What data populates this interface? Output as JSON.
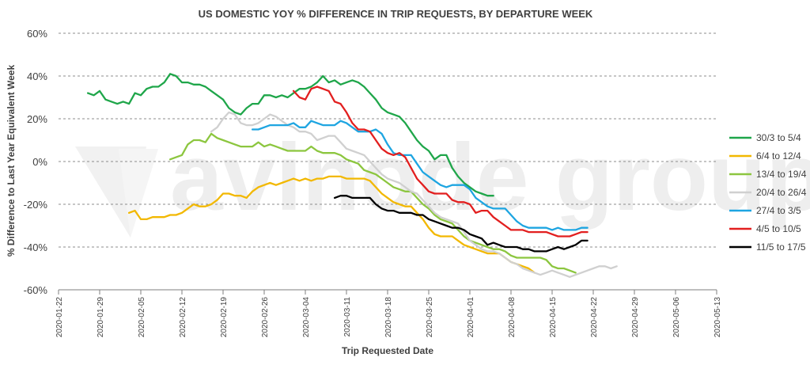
{
  "chart_data": {
    "type": "line",
    "title": "US DOMESTIC YOY % DIFFERENCE IN TRIP REQUESTS, BY DEPARTURE WEEK",
    "xlabel": "Trip Requested Date",
    "ylabel": "% Difference to Last Year Equivalent Week",
    "watermark": "avinode group",
    "ylim": [
      -60,
      60
    ],
    "yticks": [
      60,
      40,
      20,
      0,
      -20,
      -40,
      -60
    ],
    "ytick_labels": [
      "60%",
      "40%",
      "20%",
      "0%",
      "-20%",
      "-40%",
      "-60%"
    ],
    "xlim": [
      "2020-01-22",
      "2020-05-13"
    ],
    "xticks": [
      "2020-01-22",
      "2020-01-29",
      "2020-02-05",
      "2020-02-12",
      "2020-02-19",
      "2020-02-26",
      "2020-03-04",
      "2020-03-11",
      "2020-03-18",
      "2020-03-25",
      "2020-04-01",
      "2020-04-08",
      "2020-04-15",
      "2020-04-22",
      "2020-04-29",
      "2020-05-06",
      "2020-05-13"
    ],
    "grid": "horizontal-dashed",
    "legend_position": "right",
    "series": [
      {
        "name": "30/3 to 5/4",
        "color": "#1fa64a",
        "x": [
          "2020-01-27",
          "2020-01-28",
          "2020-01-29",
          "2020-01-30",
          "2020-01-31",
          "2020-02-01",
          "2020-02-02",
          "2020-02-03",
          "2020-02-04",
          "2020-02-05",
          "2020-02-06",
          "2020-02-07",
          "2020-02-08",
          "2020-02-09",
          "2020-02-10",
          "2020-02-11",
          "2020-02-12",
          "2020-02-13",
          "2020-02-14",
          "2020-02-15",
          "2020-02-16",
          "2020-02-17",
          "2020-02-18",
          "2020-02-19",
          "2020-02-20",
          "2020-02-21",
          "2020-02-22",
          "2020-02-23",
          "2020-02-24",
          "2020-02-25",
          "2020-02-26",
          "2020-02-27",
          "2020-02-28",
          "2020-02-29",
          "2020-03-01",
          "2020-03-02",
          "2020-03-03",
          "2020-03-04",
          "2020-03-05",
          "2020-03-06",
          "2020-03-07",
          "2020-03-08",
          "2020-03-09",
          "2020-03-10",
          "2020-03-11",
          "2020-03-12",
          "2020-03-13",
          "2020-03-14",
          "2020-03-15",
          "2020-03-16",
          "2020-03-17",
          "2020-03-18",
          "2020-03-19",
          "2020-03-20",
          "2020-03-21",
          "2020-03-22",
          "2020-03-23",
          "2020-03-24",
          "2020-03-25",
          "2020-03-26",
          "2020-03-27",
          "2020-03-28",
          "2020-03-29",
          "2020-03-30",
          "2020-03-31",
          "2020-04-01",
          "2020-04-02",
          "2020-04-03",
          "2020-04-04",
          "2020-04-05"
        ],
        "y": [
          32,
          31,
          33,
          29,
          28,
          27,
          28,
          27,
          32,
          31,
          34,
          35,
          35,
          37,
          41,
          40,
          37,
          37,
          36,
          36,
          35,
          33,
          31,
          29,
          25,
          23,
          22,
          25,
          27,
          27,
          31,
          31,
          30,
          31,
          30,
          32,
          34,
          34,
          35,
          37,
          40,
          37,
          38,
          36,
          37,
          38,
          37,
          35,
          32,
          29,
          25,
          23,
          22,
          21,
          18,
          14,
          10,
          7,
          5,
          1,
          3,
          3,
          -3,
          -7,
          -10,
          -12,
          -14,
          -15,
          -16,
          -16
        ]
      },
      {
        "name": "6/4 to 12/4",
        "color": "#f2b800",
        "x": [
          "2020-02-03",
          "2020-02-04",
          "2020-02-05",
          "2020-02-06",
          "2020-02-07",
          "2020-02-08",
          "2020-02-09",
          "2020-02-10",
          "2020-02-11",
          "2020-02-12",
          "2020-02-13",
          "2020-02-14",
          "2020-02-15",
          "2020-02-16",
          "2020-02-17",
          "2020-02-18",
          "2020-02-19",
          "2020-02-20",
          "2020-02-21",
          "2020-02-22",
          "2020-02-23",
          "2020-02-24",
          "2020-02-25",
          "2020-02-26",
          "2020-02-27",
          "2020-02-28",
          "2020-02-29",
          "2020-03-01",
          "2020-03-02",
          "2020-03-03",
          "2020-03-04",
          "2020-03-05",
          "2020-03-06",
          "2020-03-07",
          "2020-03-08",
          "2020-03-09",
          "2020-03-10",
          "2020-03-11",
          "2020-03-12",
          "2020-03-13",
          "2020-03-14",
          "2020-03-15",
          "2020-03-16",
          "2020-03-17",
          "2020-03-18",
          "2020-03-19",
          "2020-03-20",
          "2020-03-21",
          "2020-03-22",
          "2020-03-23",
          "2020-03-24",
          "2020-03-25",
          "2020-03-26",
          "2020-03-27",
          "2020-03-28",
          "2020-03-29",
          "2020-03-30",
          "2020-03-31",
          "2020-04-01",
          "2020-04-02",
          "2020-04-03",
          "2020-04-04",
          "2020-04-05",
          "2020-04-06",
          "2020-04-07",
          "2020-04-08",
          "2020-04-09",
          "2020-04-10",
          "2020-04-11",
          "2020-04-12"
        ],
        "y": [
          -24,
          -23,
          -27,
          -27,
          -26,
          -26,
          -26,
          -25,
          -25,
          -24,
          -22,
          -20,
          -21,
          -21,
          -20,
          -18,
          -15,
          -15,
          -16,
          -16,
          -17,
          -14,
          -12,
          -11,
          -10,
          -11,
          -10,
          -9,
          -8,
          -9,
          -8,
          -9,
          -8,
          -8,
          -7,
          -7,
          -7,
          -8,
          -8,
          -8,
          -8,
          -9,
          -12,
          -15,
          -17,
          -19,
          -20,
          -21,
          -21,
          -24,
          -27,
          -31,
          -34,
          -35,
          -35,
          -35,
          -37,
          -39,
          -40,
          -41,
          -42,
          -43,
          -43,
          -43,
          -45,
          -47,
          -48,
          -49,
          -50,
          -52
        ]
      },
      {
        "name": "13/4 to 19/4",
        "color": "#8cc63f",
        "x": [
          "2020-02-10",
          "2020-02-11",
          "2020-02-12",
          "2020-02-13",
          "2020-02-14",
          "2020-02-15",
          "2020-02-16",
          "2020-02-17",
          "2020-02-18",
          "2020-02-19",
          "2020-02-20",
          "2020-02-21",
          "2020-02-22",
          "2020-02-23",
          "2020-02-24",
          "2020-02-25",
          "2020-02-26",
          "2020-02-27",
          "2020-02-28",
          "2020-02-29",
          "2020-03-01",
          "2020-03-02",
          "2020-03-03",
          "2020-03-04",
          "2020-03-05",
          "2020-03-06",
          "2020-03-07",
          "2020-03-08",
          "2020-03-09",
          "2020-03-10",
          "2020-03-11",
          "2020-03-12",
          "2020-03-13",
          "2020-03-14",
          "2020-03-15",
          "2020-03-16",
          "2020-03-17",
          "2020-03-18",
          "2020-03-19",
          "2020-03-20",
          "2020-03-21",
          "2020-03-22",
          "2020-03-23",
          "2020-03-24",
          "2020-03-25",
          "2020-03-26",
          "2020-03-27",
          "2020-03-28",
          "2020-03-29",
          "2020-03-30",
          "2020-03-31",
          "2020-04-01",
          "2020-04-02",
          "2020-04-03",
          "2020-04-04",
          "2020-04-05",
          "2020-04-06",
          "2020-04-07",
          "2020-04-08",
          "2020-04-09",
          "2020-04-10",
          "2020-04-11",
          "2020-04-12",
          "2020-04-13",
          "2020-04-14",
          "2020-04-15",
          "2020-04-16",
          "2020-04-17",
          "2020-04-18",
          "2020-04-19"
        ],
        "y": [
          1,
          2,
          3,
          8,
          10,
          10,
          9,
          13,
          11,
          10,
          9,
          8,
          7,
          7,
          7,
          9,
          7,
          8,
          7,
          6,
          5,
          5,
          5,
          5,
          7,
          5,
          4,
          4,
          4,
          3,
          1,
          0,
          -1,
          -4,
          -5,
          -6,
          -8,
          -10,
          -12,
          -13,
          -14,
          -14,
          -17,
          -20,
          -22,
          -25,
          -27,
          -28,
          -29,
          -32,
          -35,
          -37,
          -38,
          -39,
          -40,
          -41,
          -41,
          -42,
          -44,
          -45,
          -45,
          -45,
          -45,
          -45,
          -46,
          -49,
          -50,
          -50,
          -51,
          -52
        ]
      },
      {
        "name": "20/4 to 26/4",
        "color": "#d0d0d0",
        "x": [
          "2020-02-17",
          "2020-02-18",
          "2020-02-19",
          "2020-02-20",
          "2020-02-21",
          "2020-02-22",
          "2020-02-23",
          "2020-02-24",
          "2020-02-25",
          "2020-02-26",
          "2020-02-27",
          "2020-02-28",
          "2020-02-29",
          "2020-03-01",
          "2020-03-02",
          "2020-03-03",
          "2020-03-04",
          "2020-03-05",
          "2020-03-06",
          "2020-03-07",
          "2020-03-08",
          "2020-03-09",
          "2020-03-10",
          "2020-03-11",
          "2020-03-12",
          "2020-03-13",
          "2020-03-14",
          "2020-03-15",
          "2020-03-16",
          "2020-03-17",
          "2020-03-18",
          "2020-03-19",
          "2020-03-20",
          "2020-03-21",
          "2020-03-22",
          "2020-03-23",
          "2020-03-24",
          "2020-03-25",
          "2020-03-26",
          "2020-03-27",
          "2020-03-28",
          "2020-03-29",
          "2020-03-30",
          "2020-03-31",
          "2020-04-01",
          "2020-04-02",
          "2020-04-03",
          "2020-04-04",
          "2020-04-05",
          "2020-04-06",
          "2020-04-07",
          "2020-04-08",
          "2020-04-09",
          "2020-04-10",
          "2020-04-11",
          "2020-04-12",
          "2020-04-13",
          "2020-04-14",
          "2020-04-15",
          "2020-04-16",
          "2020-04-17",
          "2020-04-18",
          "2020-04-19",
          "2020-04-20",
          "2020-04-21",
          "2020-04-22",
          "2020-04-23",
          "2020-04-24",
          "2020-04-25",
          "2020-04-26"
        ],
        "y": [
          14,
          16,
          20,
          23,
          22,
          18,
          17,
          17,
          18,
          20,
          22,
          21,
          19,
          17,
          16,
          14,
          14,
          13,
          10,
          11,
          12,
          12,
          9,
          6,
          5,
          4,
          3,
          0,
          -3,
          -6,
          -8,
          -9,
          -10,
          -12,
          -14,
          -15,
          -18,
          -21,
          -24,
          -26,
          -27,
          -28,
          -29,
          -33,
          -37,
          -39,
          -41,
          -42,
          -42,
          -43,
          -45,
          -47,
          -48,
          -50,
          -51,
          -52,
          -53,
          -52,
          -51,
          -52,
          -53,
          -54,
          -53,
          -52,
          -51,
          -50,
          -49,
          -49,
          -50,
          -49
        ]
      },
      {
        "name": "27/4 to 3/5",
        "color": "#1ea5e1",
        "x": [
          "2020-02-24",
          "2020-02-25",
          "2020-02-26",
          "2020-02-27",
          "2020-02-28",
          "2020-02-29",
          "2020-03-01",
          "2020-03-02",
          "2020-03-03",
          "2020-03-04",
          "2020-03-05",
          "2020-03-06",
          "2020-03-07",
          "2020-03-08",
          "2020-03-09",
          "2020-03-10",
          "2020-03-11",
          "2020-03-12",
          "2020-03-13",
          "2020-03-14",
          "2020-03-15",
          "2020-03-16",
          "2020-03-17",
          "2020-03-18",
          "2020-03-19",
          "2020-03-20",
          "2020-03-21",
          "2020-03-22",
          "2020-03-23",
          "2020-03-24",
          "2020-03-25",
          "2020-03-26",
          "2020-03-27",
          "2020-03-28",
          "2020-03-29",
          "2020-03-30",
          "2020-03-31",
          "2020-04-01",
          "2020-04-02",
          "2020-04-03",
          "2020-04-04",
          "2020-04-05",
          "2020-04-06",
          "2020-04-07",
          "2020-04-08",
          "2020-04-09",
          "2020-04-10",
          "2020-04-11",
          "2020-04-12",
          "2020-04-13",
          "2020-04-14",
          "2020-04-15",
          "2020-04-16",
          "2020-04-17",
          "2020-04-18",
          "2020-04-19",
          "2020-04-20",
          "2020-04-21"
        ],
        "y": [
          15,
          15,
          16,
          17,
          17,
          17,
          17,
          18,
          16,
          16,
          19,
          18,
          17,
          17,
          17,
          19,
          18,
          16,
          14,
          14,
          14,
          15,
          13,
          8,
          4,
          3,
          3,
          3,
          -1,
          -5,
          -7,
          -9,
          -11,
          -12,
          -11,
          -11,
          -11,
          -13,
          -17,
          -19,
          -21,
          -22,
          -22,
          -22,
          -25,
          -28,
          -30,
          -31,
          -31,
          -31,
          -31,
          -32,
          -31,
          -32,
          -32,
          -32,
          -31,
          -31
        ]
      },
      {
        "name": "4/5 to 10/5",
        "color": "#e21f1f",
        "x": [
          "2020-03-02",
          "2020-03-03",
          "2020-03-04",
          "2020-03-05",
          "2020-03-06",
          "2020-03-07",
          "2020-03-08",
          "2020-03-09",
          "2020-03-10",
          "2020-03-11",
          "2020-03-12",
          "2020-03-13",
          "2020-03-14",
          "2020-03-15",
          "2020-03-16",
          "2020-03-17",
          "2020-03-18",
          "2020-03-19",
          "2020-03-20",
          "2020-03-21",
          "2020-03-22",
          "2020-03-23",
          "2020-03-24",
          "2020-03-25",
          "2020-03-26",
          "2020-03-27",
          "2020-03-28",
          "2020-03-29",
          "2020-03-30",
          "2020-03-31",
          "2020-04-01",
          "2020-04-02",
          "2020-04-03",
          "2020-04-04",
          "2020-04-05",
          "2020-04-06",
          "2020-04-07",
          "2020-04-08",
          "2020-04-09",
          "2020-04-10",
          "2020-04-11",
          "2020-04-12",
          "2020-04-13",
          "2020-04-14",
          "2020-04-15",
          "2020-04-16",
          "2020-04-17",
          "2020-04-18",
          "2020-04-19",
          "2020-04-20",
          "2020-04-21"
        ],
        "y": [
          33,
          30,
          29,
          34,
          35,
          34,
          33,
          28,
          27,
          23,
          18,
          15,
          15,
          14,
          10,
          6,
          4,
          3,
          4,
          2,
          -3,
          -8,
          -11,
          -14,
          -15,
          -15,
          -15,
          -18,
          -19,
          -19,
          -20,
          -24,
          -23,
          -23,
          -26,
          -28,
          -30,
          -32,
          -32,
          -32,
          -33,
          -33,
          -33,
          -33,
          -34,
          -35,
          -35,
          -35,
          -34,
          -33,
          -33
        ]
      },
      {
        "name": "11/5 to 17/5",
        "color": "#000000",
        "x": [
          "2020-03-09",
          "2020-03-10",
          "2020-03-11",
          "2020-03-12",
          "2020-03-13",
          "2020-03-14",
          "2020-03-15",
          "2020-03-16",
          "2020-03-17",
          "2020-03-18",
          "2020-03-19",
          "2020-03-20",
          "2020-03-21",
          "2020-03-22",
          "2020-03-23",
          "2020-03-24",
          "2020-03-25",
          "2020-03-26",
          "2020-03-27",
          "2020-03-28",
          "2020-03-29",
          "2020-03-30",
          "2020-03-31",
          "2020-04-01",
          "2020-04-02",
          "2020-04-03",
          "2020-04-04",
          "2020-04-05",
          "2020-04-06",
          "2020-04-07",
          "2020-04-08",
          "2020-04-09",
          "2020-04-10",
          "2020-04-11",
          "2020-04-12",
          "2020-04-13",
          "2020-04-14",
          "2020-04-15",
          "2020-04-16",
          "2020-04-17",
          "2020-04-18",
          "2020-04-19",
          "2020-04-20",
          "2020-04-21"
        ],
        "y": [
          -17,
          -16,
          -16,
          -17,
          -17,
          -17,
          -17,
          -20,
          -22,
          -23,
          -23,
          -24,
          -24,
          -24,
          -25,
          -25,
          -27,
          -28,
          -29,
          -30,
          -31,
          -31,
          -32,
          -34,
          -35,
          -36,
          -39,
          -38,
          -39,
          -40,
          -40,
          -40,
          -41,
          -41,
          -42,
          -42,
          -42,
          -41,
          -40,
          -41,
          -40,
          -39,
          -37,
          -37
        ]
      }
    ]
  }
}
